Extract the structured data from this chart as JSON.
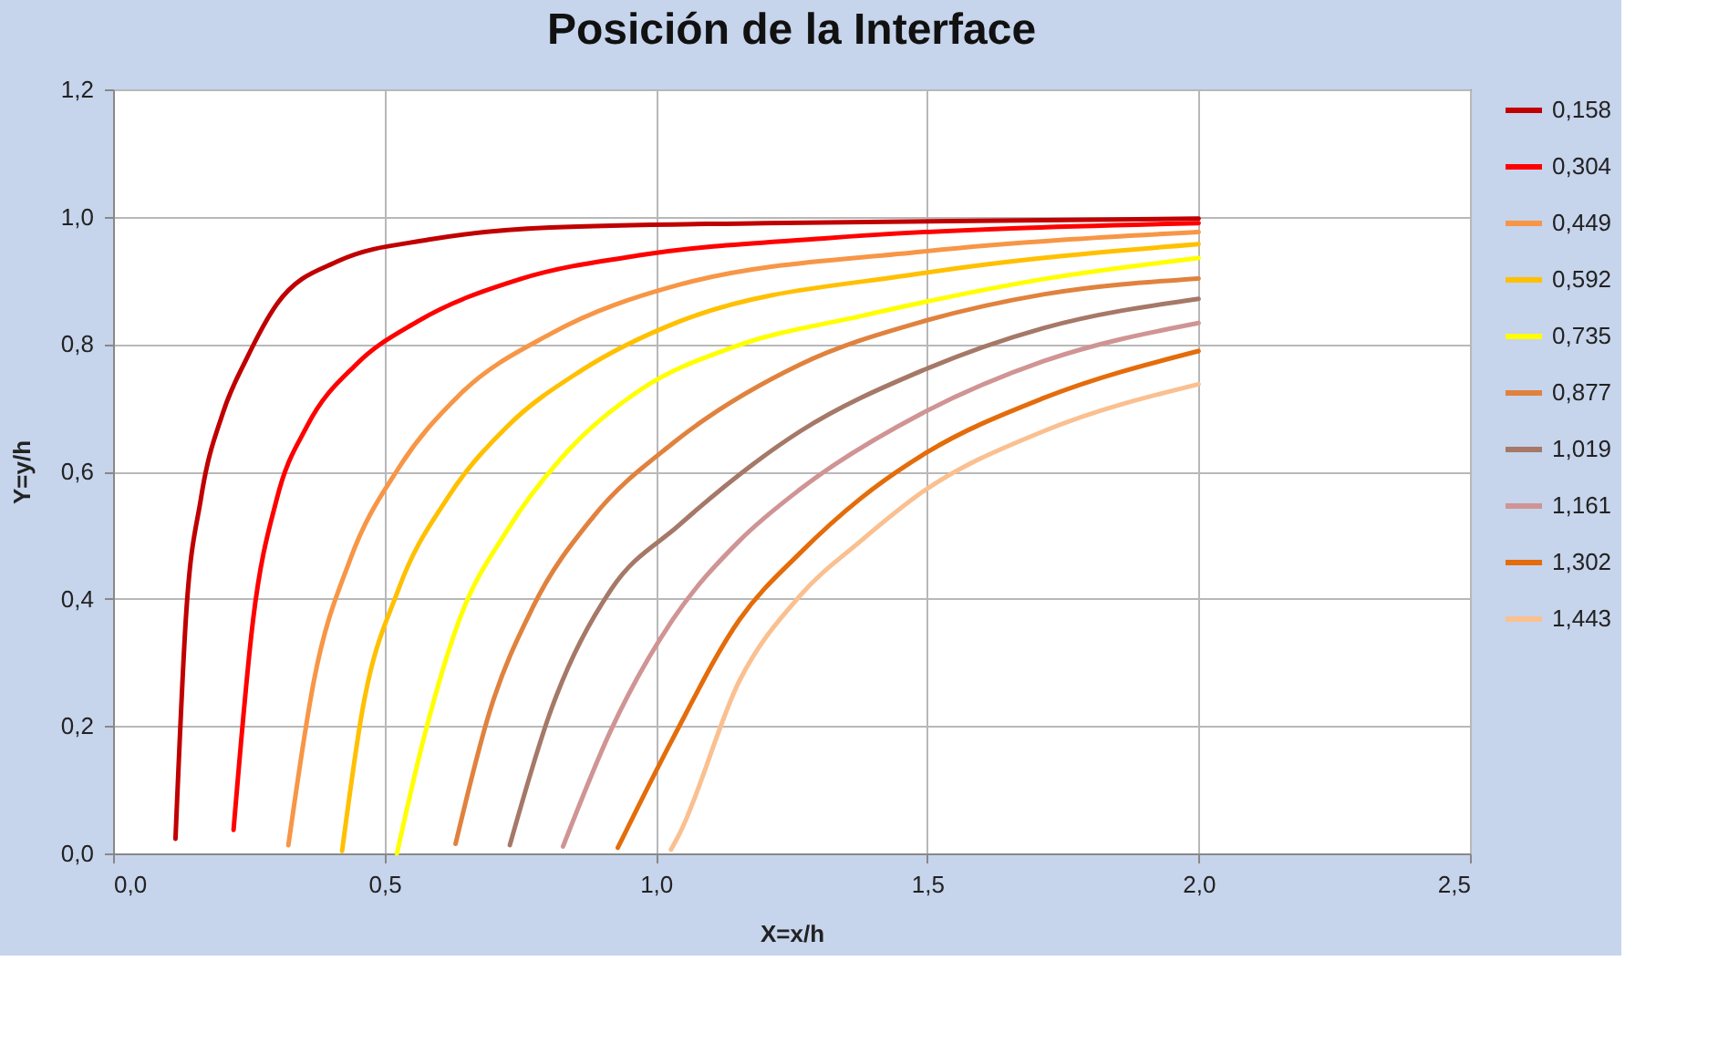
{
  "chart_data": {
    "type": "line",
    "title": "Posición de la Interface",
    "xlabel": "X=x/h",
    "ylabel": "Y=y/h",
    "xlim": [
      0,
      2.5
    ],
    "ylim": [
      0,
      1.2
    ],
    "xticks": [
      {
        "value": 0,
        "label": "0,0"
      },
      {
        "value": 0.5,
        "label": "0,5"
      },
      {
        "value": 1,
        "label": "1,0"
      },
      {
        "value": 1.5,
        "label": "1,5"
      },
      {
        "value": 2,
        "label": "2,0"
      },
      {
        "value": 2.5,
        "label": "2,5"
      }
    ],
    "yticks": [
      {
        "value": 0,
        "label": "0,0"
      },
      {
        "value": 0.2,
        "label": "0,2"
      },
      {
        "value": 0.4,
        "label": "0,4"
      },
      {
        "value": 0.6,
        "label": "0,6"
      },
      {
        "value": 0.8,
        "label": "0,8"
      },
      {
        "value": 1,
        "label": "1,0"
      },
      {
        "value": 1.2,
        "label": "1,2"
      }
    ],
    "grid": true,
    "legend": "right",
    "marker": "none",
    "line_style": "solid",
    "series": [
      {
        "name": "0,158",
        "color": "#c00000",
        "x": [
          0.115,
          0.134,
          0.162,
          0.202,
          0.246,
          0.302,
          0.414,
          0.582,
          0.806,
          1.2,
          2.0
        ],
        "values": [
          0.023,
          0.367,
          0.558,
          0.691,
          0.777,
          0.863,
          0.93,
          0.964,
          0.983,
          0.99,
          0.997
        ]
      },
      {
        "name": "0,304",
        "color": "#ff0000",
        "x": [
          0.222,
          0.258,
          0.302,
          0.358,
          0.448,
          0.56,
          0.75,
          0.975,
          1.31,
          2.0
        ],
        "values": [
          0.037,
          0.367,
          0.558,
          0.672,
          0.768,
          0.835,
          0.902,
          0.94,
          0.966,
          0.99
        ]
      },
      {
        "name": "0,449",
        "color": "#f79646",
        "x": [
          0.323,
          0.37,
          0.437,
          0.526,
          0.638,
          0.806,
          1.042,
          1.49,
          2.0
        ],
        "values": [
          0.013,
          0.271,
          0.462,
          0.605,
          0.72,
          0.816,
          0.893,
          0.945,
          0.976
        ]
      },
      {
        "name": "0,592",
        "color": "#ffc000",
        "x": [
          0.422,
          0.459,
          0.526,
          0.616,
          0.728,
          0.862,
          1.042,
          1.49,
          2.0
        ],
        "values": [
          0.004,
          0.223,
          0.415,
          0.558,
          0.672,
          0.758,
          0.835,
          0.911,
          0.957
        ]
      },
      {
        "name": "0,735",
        "color": "#ffff00",
        "x": [
          0.523,
          0.571,
          0.638,
          0.728,
          0.84,
          0.975,
          1.142,
          1.378,
          1.714,
          2.0
        ],
        "values": [
          0.0,
          0.176,
          0.367,
          0.51,
          0.634,
          0.73,
          0.795,
          0.844,
          0.902,
          0.935
        ]
      },
      {
        "name": "0,877",
        "color": "#e0823e",
        "x": [
          0.631,
          0.694,
          0.773,
          0.885,
          1.031,
          1.266,
          1.49,
          1.714,
          2.0
        ],
        "values": [
          0.015,
          0.223,
          0.386,
          0.529,
          0.644,
          0.768,
          0.835,
          0.878,
          0.903
        ]
      },
      {
        "name": "1,019",
        "color": "#a57868",
        "x": [
          0.731,
          0.806,
          0.918,
          1.042,
          1.266,
          1.49,
          1.714,
          2.0
        ],
        "values": [
          0.013,
          0.223,
          0.415,
          0.515,
          0.663,
          0.758,
          0.825,
          0.871
        ]
      },
      {
        "name": "1,161",
        "color": "#d09494",
        "x": [
          0.829,
          0.918,
          1.031,
          1.154,
          1.266,
          1.49,
          1.714,
          2.0
        ],
        "values": [
          0.011,
          0.195,
          0.367,
          0.491,
          0.572,
          0.691,
          0.773,
          0.833
        ]
      },
      {
        "name": "1,302",
        "color": "#e46c0a",
        "x": [
          0.93,
          1.031,
          1.154,
          1.266,
          1.378,
          1.49,
          1.714,
          2.0
        ],
        "values": [
          0.009,
          0.18,
          0.367,
          0.472,
          0.558,
          0.625,
          0.715,
          0.789
        ]
      },
      {
        "name": "1,443",
        "color": "#fac090",
        "x": [
          1.028,
          1.042,
          1.154,
          1.266,
          1.378,
          1.49,
          1.714,
          2.0
        ],
        "values": [
          0.006,
          0.028,
          0.271,
          0.405,
          0.491,
          0.567,
          0.663,
          0.737
        ]
      }
    ]
  }
}
